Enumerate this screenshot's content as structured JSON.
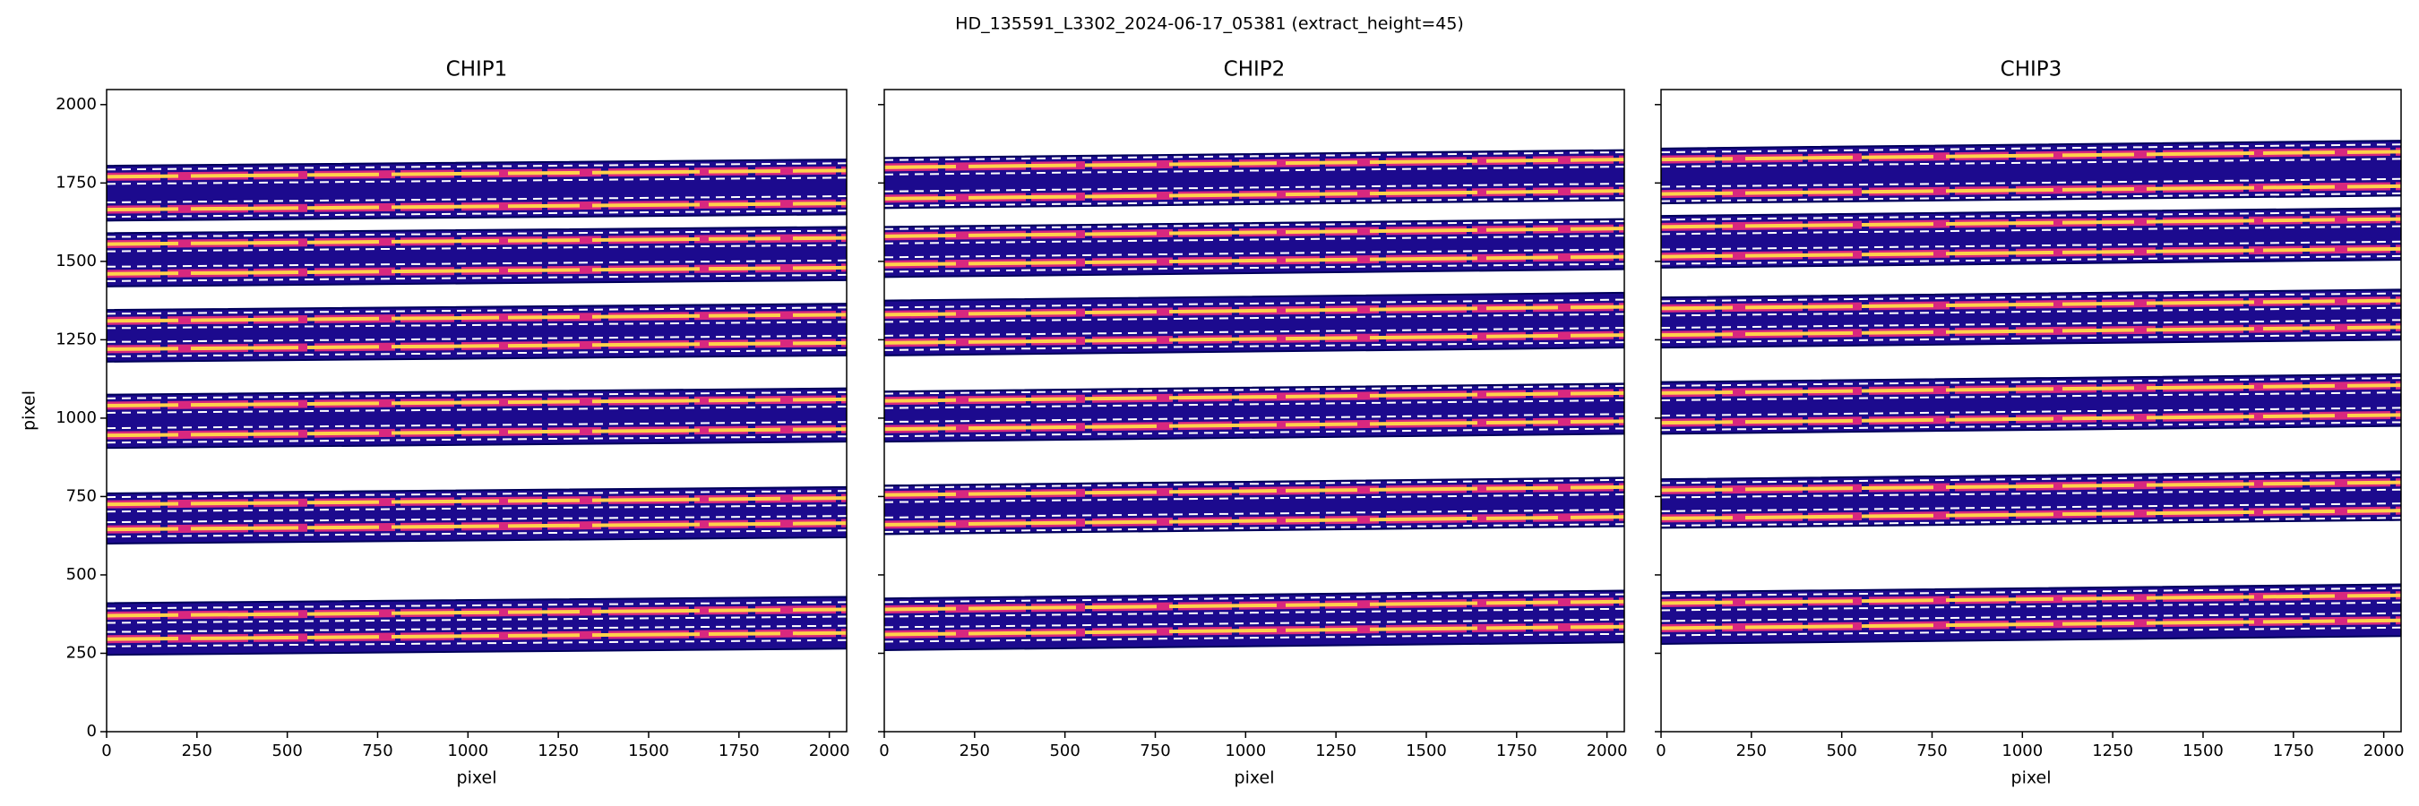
{
  "title": "HD_135591_L3302_2024-06-17_05381  (extract_height=45)",
  "chart_data": [
    {
      "type": "image",
      "title": "CHIP1",
      "xlabel": "pixel",
      "ylabel": "pixel",
      "x": [
        0,
        2048
      ],
      "xlim": [
        0,
        2048
      ],
      "ylim": [
        0,
        2048
      ],
      "xticks": [
        0,
        250,
        500,
        750,
        1000,
        1250,
        1500,
        1750,
        2000
      ],
      "yticks": [
        0,
        250,
        500,
        750,
        1000,
        1250,
        1500,
        1750,
        2000
      ],
      "band_color": "#1c0a8e",
      "trace_color": "#ffd24a",
      "window_color": "#ffffff",
      "orders": [
        {
          "bottom": [
            245,
            265
          ],
          "top": [
            410,
            430
          ],
          "traces": [
            [
              295,
              315
            ],
            [
              370,
              390
            ]
          ],
          "windows": [
            [
              272,
              292
            ],
            [
              318,
              338
            ],
            [
              347,
              367
            ],
            [
              393,
              413
            ]
          ]
        },
        {
          "bottom": [
            600,
            620
          ],
          "top": [
            760,
            780
          ],
          "traces": [
            [
              645,
              665
            ],
            [
              725,
              745
            ]
          ],
          "windows": [
            [
              622,
              642
            ],
            [
              668,
              688
            ],
            [
              702,
              722
            ],
            [
              748,
              768
            ]
          ]
        },
        {
          "bottom": [
            905,
            925
          ],
          "top": [
            1075,
            1095
          ],
          "traces": [
            [
              945,
              965
            ],
            [
              1040,
              1060
            ]
          ],
          "windows": [
            [
              922,
              942
            ],
            [
              968,
              988
            ],
            [
              1017,
              1037
            ],
            [
              1063,
              1083
            ]
          ]
        },
        {
          "bottom": [
            1180,
            1200
          ],
          "top": [
            1345,
            1365
          ],
          "traces": [
            [
              1220,
              1240
            ],
            [
              1310,
              1330
            ]
          ],
          "windows": [
            [
              1197,
              1217
            ],
            [
              1243,
              1263
            ],
            [
              1287,
              1307
            ],
            [
              1333,
              1353
            ]
          ]
        },
        {
          "bottom": [
            1420,
            1440
          ],
          "top": [
            1590,
            1610
          ],
          "traces": [
            [
              1460,
              1480
            ],
            [
              1555,
              1575
            ]
          ],
          "windows": [
            [
              1437,
              1457
            ],
            [
              1483,
              1503
            ],
            [
              1532,
              1552
            ],
            [
              1578,
              1598
            ]
          ]
        },
        {
          "bottom": [
            1630,
            1650
          ],
          "top": [
            1805,
            1825
          ],
          "traces": [
            [
              1665,
              1685
            ],
            [
              1770,
              1790
            ]
          ],
          "windows": [
            [
              1642,
              1662
            ],
            [
              1688,
              1708
            ],
            [
              1747,
              1767
            ],
            [
              1793,
              1813
            ]
          ]
        }
      ]
    },
    {
      "type": "image",
      "title": "CHIP2",
      "xlabel": "pixel",
      "x": [
        0,
        2048
      ],
      "xlim": [
        0,
        2048
      ],
      "ylim": [
        0,
        2048
      ],
      "xticks": [
        0,
        250,
        500,
        750,
        1000,
        1250,
        1500,
        1750,
        2000
      ],
      "band_color": "#1c0a8e",
      "trace_color": "#ffd24a",
      "window_color": "#ffffff",
      "orders": [
        {
          "bottom": [
            260,
            285
          ],
          "top": [
            425,
            450
          ],
          "traces": [
            [
              310,
              335
            ],
            [
              390,
              415
            ]
          ],
          "windows": [
            [
              287,
              312
            ],
            [
              333,
              358
            ],
            [
              367,
              392
            ],
            [
              413,
              438
            ]
          ]
        },
        {
          "bottom": [
            630,
            655
          ],
          "top": [
            785,
            810
          ],
          "traces": [
            [
              660,
              685
            ],
            [
              755,
              780
            ]
          ],
          "windows": [
            [
              637,
              662
            ],
            [
              683,
              708
            ],
            [
              732,
              757
            ],
            [
              778,
              803
            ]
          ]
        },
        {
          "bottom": [
            925,
            950
          ],
          "top": [
            1085,
            1110
          ],
          "traces": [
            [
              965,
              990
            ],
            [
              1055,
              1080
            ]
          ],
          "windows": [
            [
              942,
              967
            ],
            [
              988,
              1013
            ],
            [
              1032,
              1057
            ],
            [
              1078,
              1103
            ]
          ]
        },
        {
          "bottom": [
            1200,
            1225
          ],
          "top": [
            1375,
            1400
          ],
          "traces": [
            [
              1240,
              1265
            ],
            [
              1330,
              1355
            ]
          ],
          "windows": [
            [
              1217,
              1242
            ],
            [
              1263,
              1288
            ],
            [
              1307,
              1332
            ],
            [
              1353,
              1378
            ]
          ]
        },
        {
          "bottom": [
            1450,
            1475
          ],
          "top": [
            1610,
            1635
          ],
          "traces": [
            [
              1490,
              1515
            ],
            [
              1580,
              1605
            ]
          ],
          "windows": [
            [
              1467,
              1492
            ],
            [
              1513,
              1538
            ],
            [
              1557,
              1582
            ],
            [
              1603,
              1628
            ]
          ]
        },
        {
          "bottom": [
            1670,
            1695
          ],
          "top": [
            1830,
            1855
          ],
          "traces": [
            [
              1700,
              1725
            ],
            [
              1800,
              1825
            ]
          ],
          "windows": [
            [
              1677,
              1702
            ],
            [
              1723,
              1748
            ],
            [
              1777,
              1802
            ],
            [
              1823,
              1848
            ]
          ]
        }
      ]
    },
    {
      "type": "image",
      "title": "CHIP3",
      "xlabel": "pixel",
      "x": [
        0,
        2048
      ],
      "xlim": [
        0,
        2048
      ],
      "ylim": [
        0,
        2048
      ],
      "xticks": [
        0,
        250,
        500,
        750,
        1000,
        1250,
        1500,
        1750,
        2000
      ],
      "band_color": "#1c0a8e",
      "trace_color": "#ffd24a",
      "window_color": "#ffffff",
      "orders": [
        {
          "bottom": [
            280,
            305
          ],
          "top": [
            445,
            470
          ],
          "traces": [
            [
              330,
              355
            ],
            [
              410,
              435
            ]
          ],
          "windows": [
            [
              307,
              332
            ],
            [
              353,
              378
            ],
            [
              387,
              412
            ],
            [
              433,
              458
            ]
          ]
        },
        {
          "bottom": [
            650,
            675
          ],
          "top": [
            805,
            830
          ],
          "traces": [
            [
              680,
              705
            ],
            [
              770,
              795
            ]
          ],
          "windows": [
            [
              657,
              682
            ],
            [
              703,
              728
            ],
            [
              747,
              772
            ],
            [
              793,
              818
            ]
          ]
        },
        {
          "bottom": [
            950,
            975
          ],
          "top": [
            1115,
            1140
          ],
          "traces": [
            [
              985,
              1010
            ],
            [
              1080,
              1105
            ]
          ],
          "windows": [
            [
              962,
              987
            ],
            [
              1008,
              1033
            ],
            [
              1057,
              1082
            ],
            [
              1103,
              1128
            ]
          ]
        },
        {
          "bottom": [
            1225,
            1250
          ],
          "top": [
            1385,
            1410
          ],
          "traces": [
            [
              1265,
              1290
            ],
            [
              1350,
              1375
            ]
          ],
          "windows": [
            [
              1242,
              1267
            ],
            [
              1288,
              1313
            ],
            [
              1327,
              1352
            ],
            [
              1373,
              1398
            ]
          ]
        },
        {
          "bottom": [
            1480,
            1505
          ],
          "top": [
            1645,
            1670
          ],
          "traces": [
            [
              1515,
              1540
            ],
            [
              1610,
              1635
            ]
          ],
          "windows": [
            [
              1492,
              1517
            ],
            [
              1538,
              1563
            ],
            [
              1587,
              1612
            ],
            [
              1633,
              1658
            ]
          ]
        },
        {
          "bottom": [
            1685,
            1710
          ],
          "top": [
            1860,
            1885
          ],
          "traces": [
            [
              1715,
              1740
            ],
            [
              1825,
              1850
            ]
          ],
          "windows": [
            [
              1692,
              1717
            ],
            [
              1738,
              1763
            ],
            [
              1802,
              1827
            ],
            [
              1848,
              1873
            ]
          ]
        }
      ]
    }
  ]
}
